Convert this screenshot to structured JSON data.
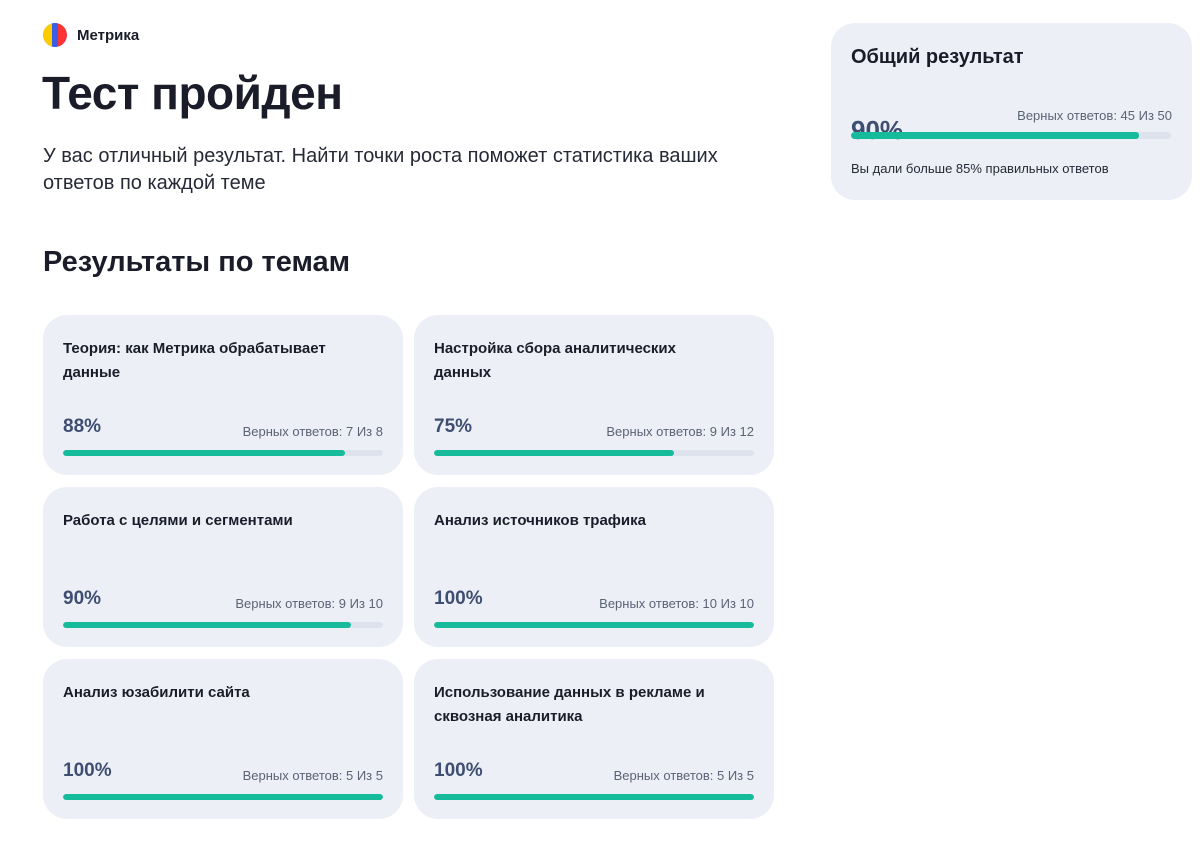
{
  "brand": {
    "name": "Метрика",
    "logo_icon": "yandex-metrica-logo-icon"
  },
  "header": {
    "title": "Тест пройден",
    "subtitle": "У вас отличный результат. Найти точки роста поможет статистика ваших ответов по каждой теме"
  },
  "topics_section": {
    "title": "Результаты по темам"
  },
  "topics": [
    {
      "title": "Теория: как Метрика обрабатывает данные",
      "percent_label": "88%",
      "count_label": "Верных ответов: 7 Из 8",
      "progress": 0.88
    },
    {
      "title": "Настройка сбора аналитических данных",
      "percent_label": "75%",
      "count_label": "Верных ответов: 9 Из 12",
      "progress": 0.75
    },
    {
      "title": "Работа с целями и сегментами",
      "percent_label": "90%",
      "count_label": "Верных ответов: 9 Из 10",
      "progress": 0.9
    },
    {
      "title": "Анализ источников трафика",
      "percent_label": "100%",
      "count_label": "Верных ответов: 10 Из 10",
      "progress": 1.0
    },
    {
      "title": "Анализ юзабилити сайта",
      "percent_label": "100%",
      "count_label": "Верных ответов: 5 Из 5",
      "progress": 1.0
    },
    {
      "title": "Использование данных в рекламе и сквозная аналитика",
      "percent_label": "100%",
      "count_label": "Верных ответов: 5 Из 5",
      "progress": 1.0
    }
  ],
  "summary": {
    "title": "Общий результат",
    "percent_label": "90%",
    "count_label": "Верных ответов: 45 Из 50",
    "progress": 0.9,
    "note": "Вы дали больше 85% правильных ответов"
  },
  "colors": {
    "accent": "#16bb9c",
    "track": "#dde2ec",
    "card_bg": "#eceff6",
    "percent_text": "#3e4e72"
  }
}
